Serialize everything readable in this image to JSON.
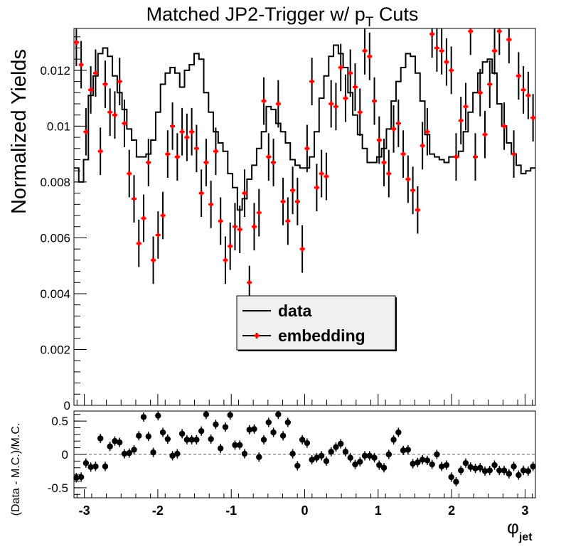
{
  "title_main": "Matched JP2-Trigger w/ p",
  "title_sub": "T",
  "title_tail": " Cuts",
  "colors": {
    "data": "#000000",
    "embedding": "#ff0000",
    "ratio": "#000000",
    "axis": "#000000",
    "legend_bg": "#f0f0f0"
  },
  "chart_data": [
    {
      "type": "line",
      "ylabel": "Normalized Yields",
      "xlim": [
        -3.14159,
        3.14159
      ],
      "ylim": [
        0,
        0.0135
      ],
      "yticks": [
        {
          "v": 0,
          "label": "0"
        },
        {
          "v": 0.002,
          "label": "0.002"
        },
        {
          "v": 0.004,
          "label": "0.004"
        },
        {
          "v": 0.006,
          "label": "0.006"
        },
        {
          "v": 0.008,
          "label": "0.008"
        },
        {
          "v": 0.01,
          "label": "0.01"
        },
        {
          "v": 0.012,
          "label": "0.012"
        }
      ],
      "legend": [
        {
          "label": "data",
          "style": "line"
        },
        {
          "label": "embedding",
          "style": "marker"
        }
      ],
      "series": [
        {
          "name": "data",
          "style": "step",
          "values": [
            0.0085,
            0.008,
            0.0088,
            0.0111,
            0.0118,
            0.0126,
            0.0128,
            0.0125,
            0.0118,
            0.0112,
            0.0106,
            0.0099,
            0.0095,
            0.0089,
            0.0089,
            0.009,
            0.0095,
            0.0105,
            0.0115,
            0.0119,
            0.0121,
            0.0119,
            0.0114,
            0.012,
            0.0122,
            0.0126,
            0.0124,
            0.0112,
            0.0105,
            0.0098,
            0.0094,
            0.0091,
            0.0083,
            0.0078,
            0.007,
            0.0074,
            0.0081,
            0.0086,
            0.0092,
            0.0098,
            0.0107,
            0.0106,
            0.0101,
            0.0098,
            0.0094,
            0.0088,
            0.0086,
            0.0085,
            0.0085,
            0.0089,
            0.0098,
            0.011,
            0.0118,
            0.0125,
            0.0129,
            0.0126,
            0.0121,
            0.0112,
            0.0104,
            0.0097,
            0.0092,
            0.0087,
            0.0087,
            0.0089,
            0.0092,
            0.0099,
            0.0109,
            0.0116,
            0.0121,
            0.0126,
            0.0125,
            0.0119,
            0.0109,
            0.0097,
            0.009,
            0.0089,
            0.0088,
            0.0087,
            0.0089,
            0.0089,
            0.0091,
            0.0098,
            0.0105,
            0.0112,
            0.0119,
            0.0123,
            0.0124,
            0.0119,
            0.0108,
            0.01,
            0.0094,
            0.009,
            0.0086,
            0.0083,
            0.0084,
            0.0085
          ]
        },
        {
          "name": "embedding",
          "style": "points",
          "values": [
            0.013,
            0.0122,
            0.0098,
            0.0113,
            0.0119,
            0.0091,
            0.0115,
            0.0105,
            0.0104,
            0.0116,
            0.0101,
            0.0083,
            0.0074,
            0.0058,
            0.0067,
            0.0087,
            0.0052,
            0.0061,
            0.0068,
            0.009,
            0.01,
            0.0089,
            0.0098,
            0.0096,
            0.0098,
            0.0092,
            0.0076,
            0.0087,
            0.0072,
            0.0091,
            0.0066,
            0.0052,
            0.0057,
            0.0064,
            0.0063,
            0.0076,
            0.0044,
            0.0064,
            0.0069,
            0.0109,
            0.0089,
            0.0087,
            0.0108,
            0.0073,
            0.0066,
            0.0077,
            0.0073,
            0.0056,
            0.0092,
            0.0116,
            0.0078,
            0.0083,
            0.0082,
            0.0108,
            0.0107,
            0.0121,
            0.011,
            0.0119,
            0.0114,
            0.0105,
            0.0127,
            0.0125,
            0.0109,
            0.0095,
            0.0087,
            0.0083,
            0.0099,
            0.0101,
            0.009,
            0.0081,
            0.0077,
            0.007,
            0.0093,
            0.0098,
            0.0133,
            0.0128,
            0.0127,
            0.0123,
            0.012,
            0.0089,
            0.0102,
            0.0107,
            0.0134,
            0.0089,
            0.0112,
            0.0097,
            0.0115,
            0.0127,
            0.0134,
            0.01,
            0.0131,
            0.009,
            0.0118,
            0.0113,
            0.0111,
            0.0103
          ],
          "errors": [
            0.00085,
            0.00085,
            0.00085,
            0.00085,
            0.00085,
            0.00085,
            0.00085,
            0.00085,
            0.00085,
            0.00085,
            0.00085,
            0.00085,
            0.00085,
            0.00085,
            0.00085,
            0.00085,
            0.00085,
            0.00085,
            0.00085,
            0.00085,
            0.00085,
            0.00085,
            0.00085,
            0.00085,
            0.00085,
            0.00085,
            0.00085,
            0.00085,
            0.00085,
            0.00085,
            0.00085,
            0.00085,
            0.00085,
            0.00085,
            0.00085,
            0.00085,
            0.0006,
            0.00085,
            0.00085,
            0.00085,
            0.00085,
            0.00085,
            0.00085,
            0.00085,
            0.00085,
            0.00085,
            0.00085,
            0.00085,
            0.00085,
            0.00085,
            0.00085,
            0.00085,
            0.00085,
            0.00085,
            0.00085,
            0.00085,
            0.00085,
            0.00085,
            0.00085,
            0.00085,
            0.00085,
            0.00085,
            0.00085,
            0.00085,
            0.00085,
            0.00085,
            0.00085,
            0.00085,
            0.00085,
            0.00085,
            0.00085,
            0.00085,
            0.00085,
            0.00085,
            0.00085,
            0.00085,
            0.00085,
            0.00085,
            0.00085,
            0.00085,
            0.00085,
            0.00085,
            0.00085,
            0.00085,
            0.00085,
            0.00085,
            0.00085,
            0.00085,
            0.00085,
            0.00085,
            0.00085,
            0.00085,
            0.00085,
            0.00085,
            0.00085,
            0.00085
          ]
        }
      ]
    },
    {
      "type": "scatter",
      "ylabel": "(Data - M.C.)/M.C.",
      "xlabel": "φ",
      "xlabel_sub": "jet",
      "xlim": [
        -3.14159,
        3.14159
      ],
      "ylim": [
        -0.65,
        0.65
      ],
      "reference_line": 0,
      "yticks": [
        {
          "v": -0.5,
          "label": "-0.5"
        },
        {
          "v": 0,
          "label": "0"
        },
        {
          "v": 0.5,
          "label": "0.5"
        }
      ],
      "xticks": [
        {
          "v": -3,
          "label": "-3"
        },
        {
          "v": -2,
          "label": "-2"
        },
        {
          "v": -1,
          "label": "-1"
        },
        {
          "v": 0,
          "label": "0"
        },
        {
          "v": 1,
          "label": "1"
        },
        {
          "v": 2,
          "label": "2"
        },
        {
          "v": 3,
          "label": "3"
        }
      ],
      "series": [
        {
          "values": [
            -0.35,
            -0.34,
            -0.13,
            -0.19,
            -0.18,
            0.24,
            -0.18,
            0.12,
            0.2,
            0.18,
            0.01,
            0.02,
            0.07,
            0.28,
            0.56,
            0.27,
            0.03,
            0.58,
            0.33,
            0.23,
            -0.02,
            0.01,
            0.31,
            0.22,
            0.22,
            0.22,
            0.35,
            0.6,
            0.23,
            0.45,
            0.09,
            0.41,
            0.59,
            0.14,
            0.14,
            0.01,
            0.37,
            0.38,
            -0.04,
            0.22,
            0.48,
            0.33,
            0.6,
            0.28,
            0.48,
            0.01,
            -0.17,
            0.22,
            0.17,
            -0.08,
            -0.05,
            -0.02,
            -0.1,
            0.04,
            0.11,
            0.16,
            0.04,
            -0.05,
            -0.15,
            -0.11,
            -0.02,
            -0.02,
            -0.05,
            -0.16,
            -0.2,
            0.0,
            0.22,
            0.33,
            0.06,
            0.07,
            -0.14,
            -0.12,
            -0.08,
            -0.09,
            -0.15,
            0.0,
            -0.18,
            -0.16,
            -0.34,
            -0.41,
            -0.24,
            -0.13,
            -0.19,
            -0.21,
            -0.2,
            -0.25,
            -0.24,
            -0.16,
            -0.24,
            -0.24,
            -0.29,
            -0.18,
            -0.31,
            -0.24,
            -0.25,
            -0.18
          ],
          "errors": [
            0.07,
            0.07,
            0.07,
            0.07,
            0.07,
            0.07,
            0.07,
            0.07,
            0.07,
            0.07,
            0.07,
            0.07,
            0.07,
            0.07,
            0.07,
            0.07,
            0.07,
            0.07,
            0.07,
            0.07,
            0.07,
            0.07,
            0.07,
            0.07,
            0.07,
            0.07,
            0.07,
            0.07,
            0.07,
            0.07,
            0.07,
            0.07,
            0.07,
            0.07,
            0.07,
            0.07,
            0.07,
            0.07,
            0.07,
            0.07,
            0.07,
            0.07,
            0.07,
            0.07,
            0.07,
            0.07,
            0.07,
            0.07,
            0.07,
            0.07,
            0.07,
            0.07,
            0.07,
            0.07,
            0.07,
            0.07,
            0.07,
            0.07,
            0.07,
            0.07,
            0.07,
            0.07,
            0.07,
            0.07,
            0.07,
            0.07,
            0.07,
            0.07,
            0.07,
            0.07,
            0.07,
            0.07,
            0.07,
            0.07,
            0.07,
            0.07,
            0.07,
            0.07,
            0.07,
            0.07,
            0.07,
            0.07,
            0.07,
            0.07,
            0.07,
            0.07,
            0.07,
            0.07,
            0.07,
            0.07,
            0.07,
            0.07,
            0.07,
            0.07,
            0.07,
            0.07
          ]
        }
      ]
    }
  ]
}
